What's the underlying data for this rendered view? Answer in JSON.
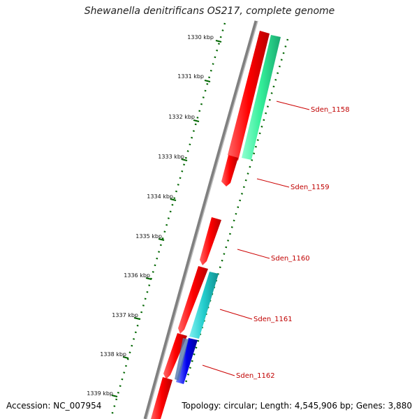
{
  "title": "Shewanella denitrificans OS217, complete genome",
  "footer": {
    "accession": "Accession: NC_007954",
    "summary": "Topology: circular; Length: 4,545,906 bp; Genes: 3,880"
  },
  "ticks": [
    "1330 kbp",
    "1331 kbp",
    "1332 kbp",
    "1333 kbp",
    "1334 kbp",
    "1335 kbp",
    "1336 kbp",
    "1337 kbp",
    "1338 kbp",
    "1339 kbp"
  ],
  "gene_labels": [
    "Sden_1158",
    "Sden_1159",
    "Sden_1160",
    "Sden_1161",
    "Sden_1162"
  ],
  "colors": {
    "backbone": "#808080",
    "forward_cds": "#ff0000",
    "feature_green": "#33ee99",
    "feature_cyan": "#22cccc",
    "feature_blue": "#0000ee",
    "tick": "#006600",
    "label_line": "#cc0000"
  }
}
